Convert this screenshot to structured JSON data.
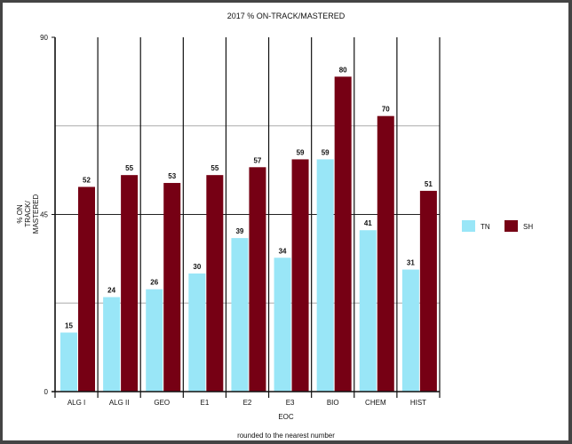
{
  "chart_data": {
    "type": "bar",
    "title": "2017 % ON-TRACK/MASTERED",
    "xlabel": "EOC",
    "ylabel_lines": [
      "% ON",
      "TRACK/",
      "MASTERED"
    ],
    "footnote": "rounded to the nearest number",
    "categories": [
      "ALG I",
      "ALG II",
      "GEO",
      "E1",
      "E2",
      "E3",
      "BIO",
      "CHEM",
      "HIST"
    ],
    "series": [
      {
        "name": "TN",
        "color": "#99e6f7",
        "values": [
          15,
          24,
          26,
          30,
          39,
          34,
          59,
          41,
          31
        ]
      },
      {
        "name": "SH",
        "color": "#760014",
        "values": [
          52,
          55,
          53,
          55,
          57,
          59,
          80,
          70,
          51
        ]
      }
    ],
    "ylim": [
      0,
      90
    ],
    "yticks": [
      0,
      45,
      90
    ],
    "gridlines": [
      22.5,
      45,
      67.5
    ],
    "grid": true,
    "legend_position": "right"
  }
}
